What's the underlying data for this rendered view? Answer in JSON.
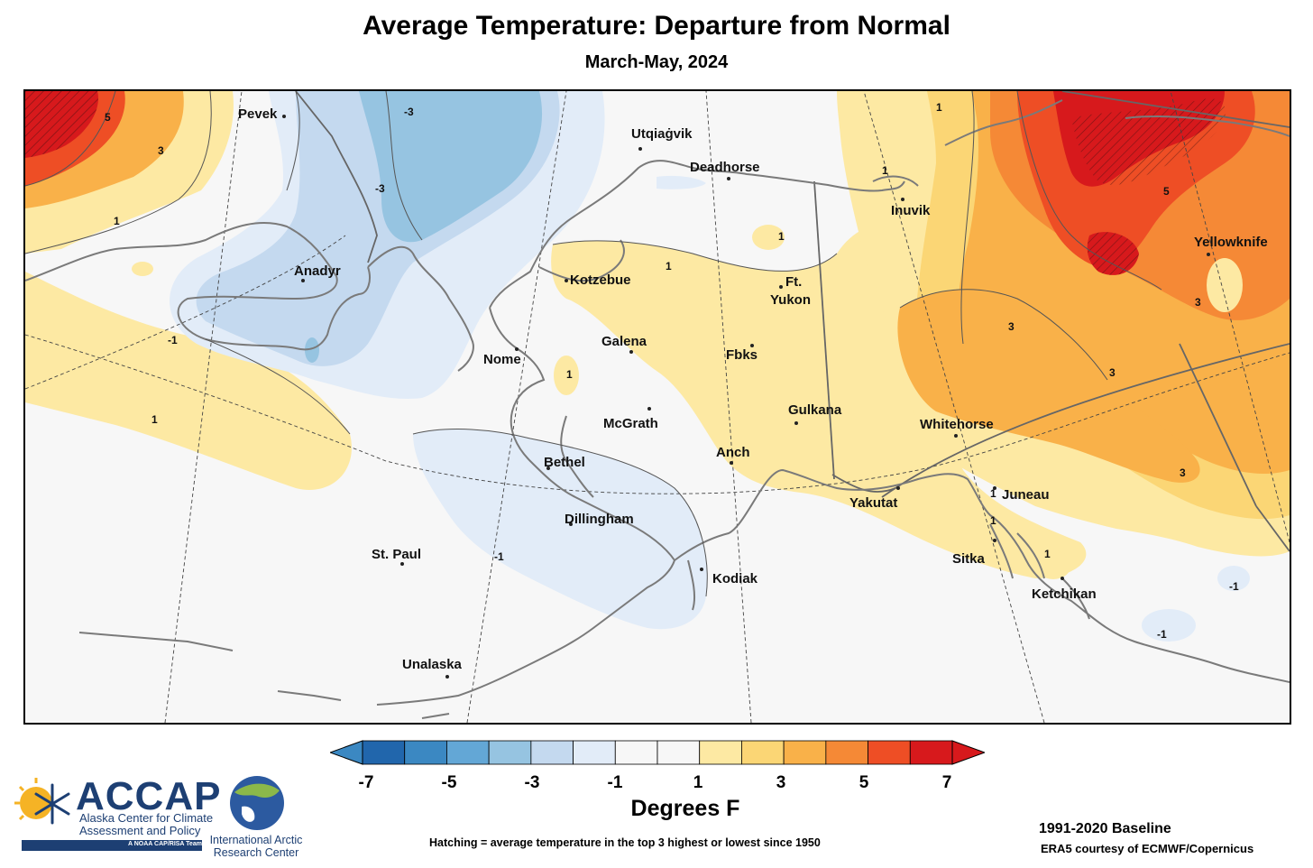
{
  "title": "Average Temperature: Departure from Normal",
  "subtitle": "March-May, 2024",
  "cities": [
    {
      "name": "Pevek"
    },
    {
      "name": "Utqiaġvik"
    },
    {
      "name": "Deadhorse"
    },
    {
      "name": "Inuvik"
    },
    {
      "name": "Yellowknife"
    },
    {
      "name": "Anadyr"
    },
    {
      "name": "Kotzebue"
    },
    {
      "name": "Ft."
    },
    {
      "name": "Yukon"
    },
    {
      "name": "Galena"
    },
    {
      "name": "Nome"
    },
    {
      "name": "Fbks"
    },
    {
      "name": "McGrath"
    },
    {
      "name": "Gulkana"
    },
    {
      "name": "Whitehorse"
    },
    {
      "name": "Bethel"
    },
    {
      "name": "Anch"
    },
    {
      "name": "Yakutat"
    },
    {
      "name": "Juneau"
    },
    {
      "name": "Dillingham"
    },
    {
      "name": "St. Paul"
    },
    {
      "name": "Kodiak"
    },
    {
      "name": "Sitka"
    },
    {
      "name": "Ketchikan"
    },
    {
      "name": "Unalaska"
    }
  ],
  "contour_labels": [
    "5",
    "3",
    "1",
    "-3",
    "-3",
    "1",
    "1",
    "1",
    "-1",
    "1",
    "1",
    "1",
    "-1",
    "5",
    "3",
    "3",
    "3",
    "3",
    "1",
    "1",
    "-1",
    "-1",
    "1"
  ],
  "colorbar": {
    "ticks": [
      "-7",
      "-5",
      "-3",
      "-1",
      "1",
      "3",
      "5",
      "7"
    ],
    "colors": [
      "#2166ac",
      "#3b88c2",
      "#63a7d6",
      "#96c4e1",
      "#c4d9ef",
      "#e2ecf8",
      "#f7f7f7",
      "#f7f7f7",
      "#fde9a3",
      "#fbd675",
      "#f9b149",
      "#f58936",
      "#ee4e25",
      "#d7191c"
    ],
    "low_arrow_color": "#3b88c2",
    "high_arrow_color": "#d7191c",
    "unit_label": "Degrees F"
  },
  "footer": {
    "hatching_note": "Hatching = average temperature in the top 3 highest or lowest since 1950",
    "baseline": "1991-2020 Baseline",
    "source": "ERA5 courtesy of ECMWF/Copernicus"
  },
  "logos": {
    "accap_name": "ACCAP",
    "accap_line1": "Alaska Center for Climate",
    "accap_line2": "Assessment and Policy",
    "accap_team": "A NOAA CAP/RISA Team",
    "iarc_line1": "International Arctic",
    "iarc_line2": "Research Center"
  }
}
